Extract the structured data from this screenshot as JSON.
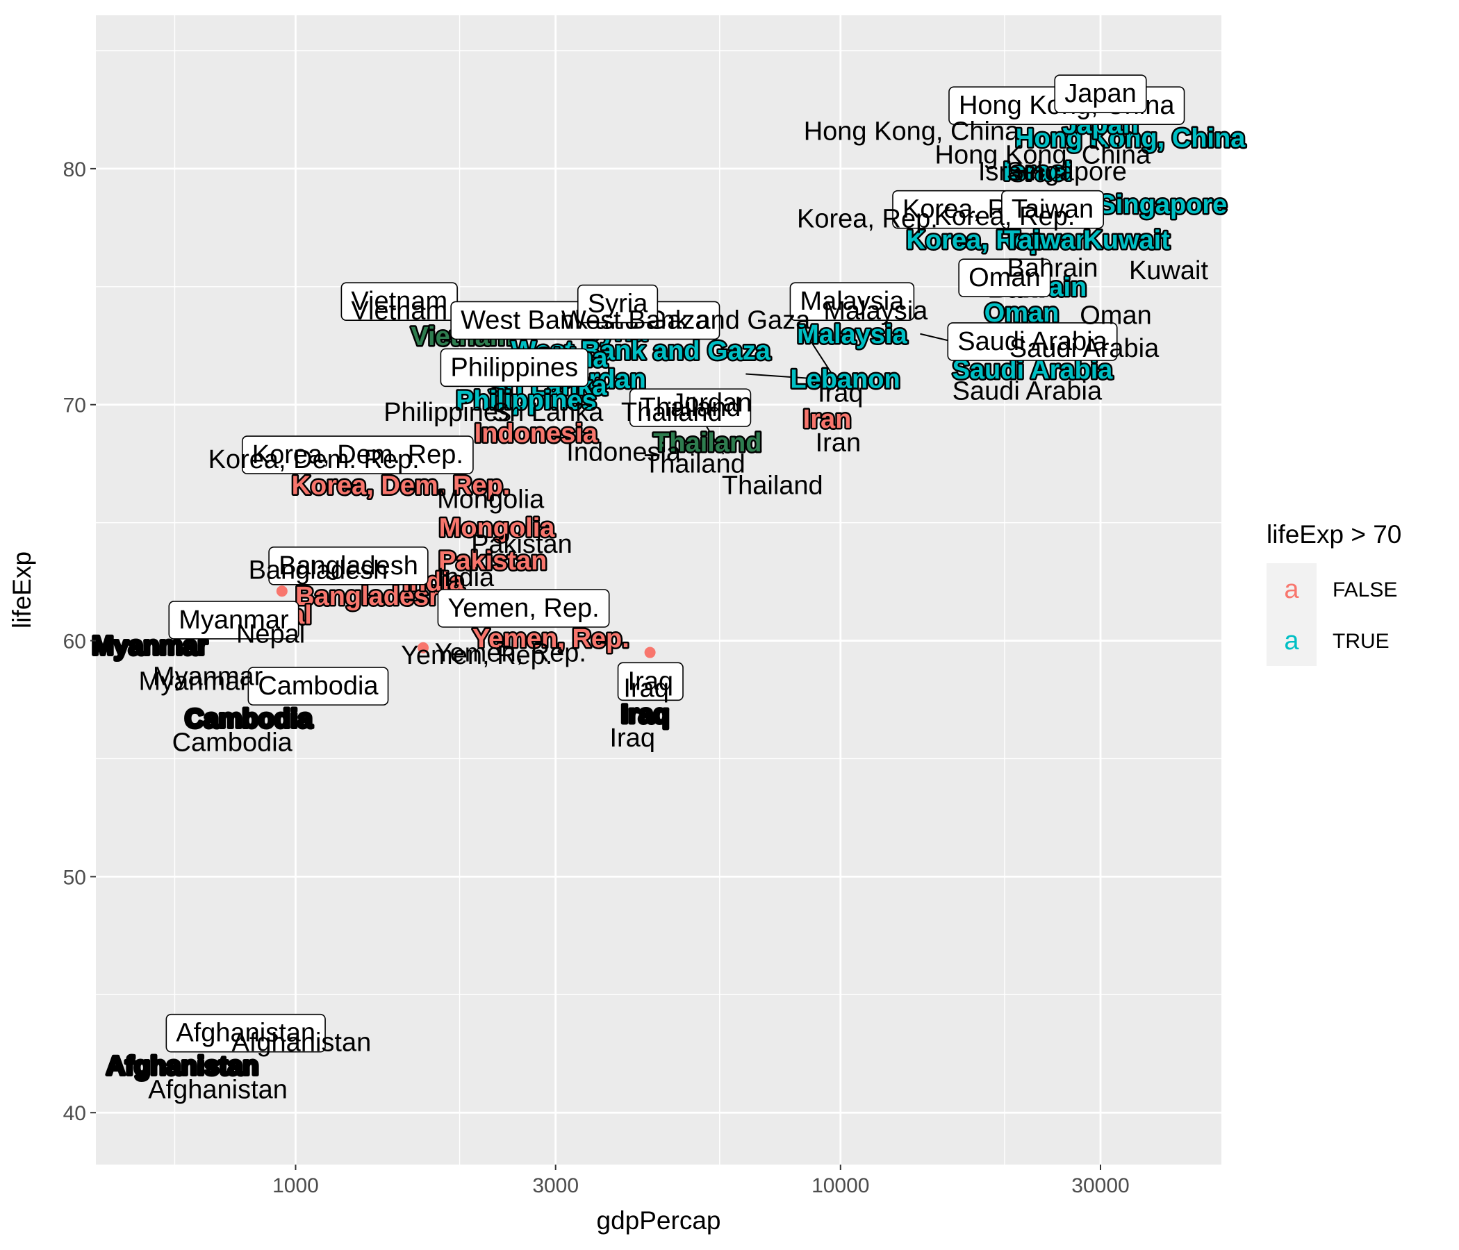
{
  "chart_data": {
    "type": "scatter",
    "x_scale": "log10",
    "xlabel": "gdpPercap",
    "ylabel": "lifeExp",
    "xlim": [
      430,
      50000
    ],
    "ylim": [
      37.8,
      86.5
    ],
    "x_ticks": [
      1000,
      3000,
      10000,
      30000
    ],
    "x_tick_labels": [
      "1000",
      "3000",
      "10000",
      "30000"
    ],
    "x_minor": [
      600,
      2000,
      6000,
      20000
    ],
    "y_ticks": [
      40,
      50,
      60,
      70,
      80
    ],
    "y_tick_labels": [
      "40",
      "50",
      "60",
      "70",
      "80"
    ],
    "grid": true,
    "legend": {
      "title": "lifeExp > 70",
      "position": "right",
      "key_glyph": "a",
      "entries": [
        {
          "label": "FALSE",
          "color": "#F8766D"
        },
        {
          "label": "TRUE",
          "color": "#00BFC4"
        }
      ]
    },
    "colors": {
      "false": "#F8766D",
      "true": "#00BFC4",
      "dark_green": "#2E7D4F",
      "panel": "#EBEBEB",
      "grid": "#FFFFFF"
    },
    "points": [
      {
        "label": "Afghanistan",
        "x": 975,
        "y": 43.8,
        "group": false,
        "dot": true
      },
      {
        "label": "Myanmar",
        "x": 944,
        "y": 62.1,
        "group": false,
        "dot": true
      },
      {
        "label": "Cambodia",
        "x": 1714,
        "y": 59.7,
        "group": false,
        "dot": true
      },
      {
        "label": "Iraq",
        "x": 4471,
        "y": 59.5,
        "group": false,
        "dot": true
      }
    ],
    "label_layers": [
      {
        "style": "bold",
        "items": [
          {
            "text": "Afghanistan",
            "x": 620,
            "y": 42.0,
            "color": "#000000"
          },
          {
            "text": "Myanmar",
            "x": 540,
            "y": 59.8,
            "color": "#000000"
          },
          {
            "text": "Cambodia",
            "x": 820,
            "y": 56.7,
            "color": "#000000"
          },
          {
            "text": "Iraq",
            "x": 4380,
            "y": 56.9,
            "color": "#000000"
          },
          {
            "text": "Korea, Dem. Rep.",
            "x": 1560,
            "y": 66.6,
            "color": "#F8766D"
          },
          {
            "text": "Mongolia",
            "x": 2340,
            "y": 64.8,
            "color": "#F8766D"
          },
          {
            "text": "Pakistan",
            "x": 2300,
            "y": 63.4,
            "color": "#F8766D"
          },
          {
            "text": "Bangladesh",
            "x": 1370,
            "y": 61.9,
            "color": "#F8766D"
          },
          {
            "text": "India",
            "x": 1790,
            "y": 62.5,
            "color": "#F8766D"
          },
          {
            "text": "Nepal",
            "x": 920,
            "y": 61.1,
            "color": "#F8766D"
          },
          {
            "text": "Yemen, Rep.",
            "x": 2940,
            "y": 60.1,
            "color": "#F8766D"
          },
          {
            "text": "Indonesia",
            "x": 2760,
            "y": 68.8,
            "color": "#F8766D"
          },
          {
            "text": "Iran",
            "x": 9450,
            "y": 69.4,
            "color": "#F8766D"
          },
          {
            "text": "Vietnam",
            "x": 2020,
            "y": 72.9,
            "color": "#2E7D4F"
          },
          {
            "text": "Thailand",
            "x": 5700,
            "y": 68.4,
            "color": "#2E7D4F"
          },
          {
            "text": "Syria",
            "x": 3850,
            "y": 73.1,
            "color": "#00BFC4"
          },
          {
            "text": "West Bank and Gaza",
            "x": 4300,
            "y": 72.3,
            "color": "#00BFC4"
          },
          {
            "text": "China",
            "x": 3200,
            "y": 72.0,
            "color": "#00BFC4"
          },
          {
            "text": "Jordan",
            "x": 3650,
            "y": 71.1,
            "color": "#00BFC4"
          },
          {
            "text": "Sri Lanka",
            "x": 2900,
            "y": 70.8,
            "color": "#00BFC4"
          },
          {
            "text": "Philippines",
            "x": 2650,
            "y": 70.2,
            "color": "#00BFC4"
          },
          {
            "text": "Malaysia",
            "x": 10500,
            "y": 73.0,
            "color": "#00BFC4"
          },
          {
            "text": "Lebanon",
            "x": 10200,
            "y": 71.1,
            "color": "#00BFC4"
          },
          {
            "text": "Saudi Arabia",
            "x": 22500,
            "y": 71.5,
            "color": "#00BFC4"
          },
          {
            "text": "Oman",
            "x": 21500,
            "y": 73.9,
            "color": "#00BFC4"
          },
          {
            "text": "Bahrain",
            "x": 23000,
            "y": 75.0,
            "color": "#00BFC4"
          },
          {
            "text": "Korea, Rep.",
            "x": 18000,
            "y": 77.0,
            "color": "#00BFC4"
          },
          {
            "text": "Taiwan",
            "x": 24000,
            "y": 77.0,
            "color": "#00BFC4"
          },
          {
            "text": "Kuwait",
            "x": 33500,
            "y": 77.0,
            "color": "#00BFC4"
          },
          {
            "text": "Singapore",
            "x": 39000,
            "y": 78.5,
            "color": "#00BFC4"
          },
          {
            "text": "Israel",
            "x": 23000,
            "y": 79.9,
            "color": "#00BFC4"
          },
          {
            "text": "Hong Kong, China",
            "x": 34000,
            "y": 81.3,
            "color": "#00BFC4"
          },
          {
            "text": "Japan",
            "x": 30000,
            "y": 81.9,
            "color": "#00BFC4"
          }
        ]
      },
      {
        "style": "box",
        "items": [
          {
            "text": "Afghanistan",
            "x": 810,
            "y": 43.4
          },
          {
            "text": "Myanmar",
            "x": 770,
            "y": 60.9
          },
          {
            "text": "Cambodia",
            "x": 1100,
            "y": 58.1
          },
          {
            "text": "Iraq",
            "x": 4480,
            "y": 58.3
          },
          {
            "text": "Korea, Dem. Rep.",
            "x": 1300,
            "y": 67.9
          },
          {
            "text": "Bangladesh",
            "x": 1250,
            "y": 63.2
          },
          {
            "text": "Yemen, Rep.",
            "x": 2620,
            "y": 61.4
          },
          {
            "text": "Vietnam",
            "x": 1550,
            "y": 74.4
          },
          {
            "text": "West Bank and Gaza",
            "x": 3400,
            "y": 73.6
          },
          {
            "text": "Syria",
            "x": 3900,
            "y": 74.3
          },
          {
            "text": "Philippines",
            "x": 2520,
            "y": 71.6
          },
          {
            "text": "Thailand",
            "x": 5300,
            "y": 69.9
          },
          {
            "text": "Malaysia",
            "x": 10500,
            "y": 74.4
          },
          {
            "text": "Saudi Arabia",
            "x": 22500,
            "y": 72.7
          },
          {
            "text": "Oman",
            "x": 20000,
            "y": 75.4
          },
          {
            "text": "Korea, Rep.",
            "x": 17500,
            "y": 78.3
          },
          {
            "text": "Taiwan",
            "x": 24500,
            "y": 78.3
          },
          {
            "text": "Hong Kong, China",
            "x": 26000,
            "y": 82.7
          },
          {
            "text": "Japan",
            "x": 30000,
            "y": 83.2
          }
        ]
      },
      {
        "style": "plain",
        "items": [
          {
            "text": "Afghanistan",
            "x": 1025,
            "y": 43.0
          },
          {
            "text": "Afghanistan",
            "x": 720,
            "y": 41.0
          },
          {
            "text": "Myanmar",
            "x": 690,
            "y": 58.5
          },
          {
            "text": "Myanmar",
            "x": 650,
            "y": 58.3
          },
          {
            "text": "Nepal",
            "x": 900,
            "y": 60.3
          },
          {
            "text": "Cambodia",
            "x": 765,
            "y": 55.7
          },
          {
            "text": "Iraq",
            "x": 4400,
            "y": 58.0
          },
          {
            "text": "Iraq",
            "x": 4150,
            "y": 55.9
          },
          {
            "text": "Korea, Dem. Rep.",
            "x": 1080,
            "y": 67.7
          },
          {
            "text": "Korea, Rep.",
            "x": 11200,
            "y": 77.9
          },
          {
            "text": "Mongolia",
            "x": 2280,
            "y": 66.0
          },
          {
            "text": "Pakistan",
            "x": 2600,
            "y": 64.1
          },
          {
            "text": "India",
            "x": 2050,
            "y": 62.7
          },
          {
            "text": "Bangladesh",
            "x": 1100,
            "y": 63.0
          },
          {
            "text": "Yemen, Rep.",
            "x": 2150,
            "y": 59.4
          },
          {
            "text": "Yemen, Rep.",
            "x": 2480,
            "y": 59.5
          },
          {
            "text": "Indonesia",
            "x": 4000,
            "y": 68.0
          },
          {
            "text": "Vietnam",
            "x": 1550,
            "y": 74.0
          },
          {
            "text": "Philippines",
            "x": 1900,
            "y": 69.7
          },
          {
            "text": "Sri Lanka",
            "x": 2900,
            "y": 69.7
          },
          {
            "text": "Thailand",
            "x": 4900,
            "y": 69.7
          },
          {
            "text": "Thailand",
            "x": 5400,
            "y": 67.5
          },
          {
            "text": "Thailand",
            "x": 7500,
            "y": 66.6
          },
          {
            "text": "Jordan",
            "x": 5800,
            "y": 70.1
          },
          {
            "text": "Iran",
            "x": 9900,
            "y": 68.4
          },
          {
            "text": "Iraq",
            "x": 10000,
            "y": 70.5
          },
          {
            "text": "West Bank and Gaza",
            "x": 5200,
            "y": 73.6
          },
          {
            "text": "Malaysia",
            "x": 11600,
            "y": 74.0
          },
          {
            "text": "Saudi Arabia",
            "x": 28000,
            "y": 72.4
          },
          {
            "text": "Saudi Arabia",
            "x": 22000,
            "y": 70.6
          },
          {
            "text": "Oman",
            "x": 32000,
            "y": 73.8
          },
          {
            "text": "Kuwait",
            "x": 40000,
            "y": 75.7
          },
          {
            "text": "Bahrain",
            "x": 24500,
            "y": 75.8
          },
          {
            "text": "Korea, Rep.",
            "x": 20000,
            "y": 78.0
          },
          {
            "text": "Singapore",
            "x": 26000,
            "y": 79.9
          },
          {
            "text": "Israel",
            "x": 20500,
            "y": 79.9
          },
          {
            "text": "Hong Kong, China",
            "x": 23500,
            "y": 80.6
          },
          {
            "text": "Hong Kong, China",
            "x": 13500,
            "y": 81.6
          }
        ]
      }
    ]
  }
}
